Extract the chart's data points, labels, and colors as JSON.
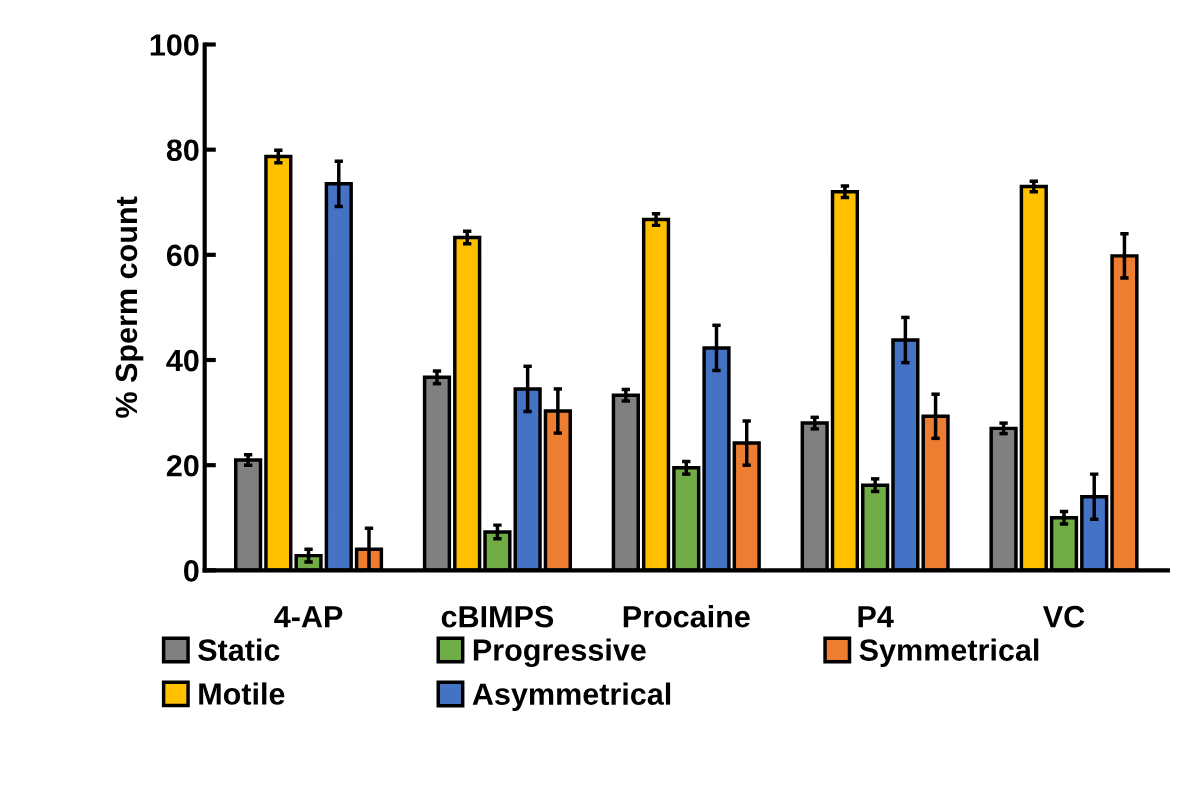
{
  "chart_data": {
    "type": "bar",
    "ylabel": "% Sperm count",
    "categories": [
      "4-AP",
      "cBIMPS",
      "Procaine",
      "P4",
      "VC"
    ],
    "series": [
      {
        "name": "Static",
        "color": "#808080",
        "values": [
          21,
          36.7,
          33.3,
          28,
          27
        ],
        "errors": [
          1,
          1.2,
          1.1,
          1.1,
          1
        ]
      },
      {
        "name": "Motile",
        "color": "#ffc000",
        "values": [
          78.7,
          63.3,
          66.7,
          72,
          73
        ],
        "errors": [
          1.2,
          1.2,
          1.1,
          1.1,
          1
        ]
      },
      {
        "name": "Progressive",
        "color": "#70ad47",
        "values": [
          2.8,
          7.3,
          19.5,
          16.2,
          10
        ],
        "errors": [
          1.2,
          1.3,
          1.2,
          1.2,
          1.2
        ]
      },
      {
        "name": "Asymmetrical",
        "color": "#4472c4",
        "values": [
          73.5,
          34.5,
          42.3,
          43.8,
          14
        ],
        "errors": [
          4.3,
          4.3,
          4.3,
          4.3,
          4.3
        ]
      },
      {
        "name": "Symmetrical",
        "color": "#ed7d31",
        "values": [
          4,
          30.3,
          24.2,
          29.3,
          59.8
        ],
        "errors": [
          4,
          4.2,
          4.2,
          4.2,
          4.2
        ]
      }
    ],
    "ylim": [
      0,
      100
    ],
    "yticks": [
      0,
      20,
      40,
      60,
      80,
      100
    ],
    "grid": false,
    "legend": "bottom"
  }
}
